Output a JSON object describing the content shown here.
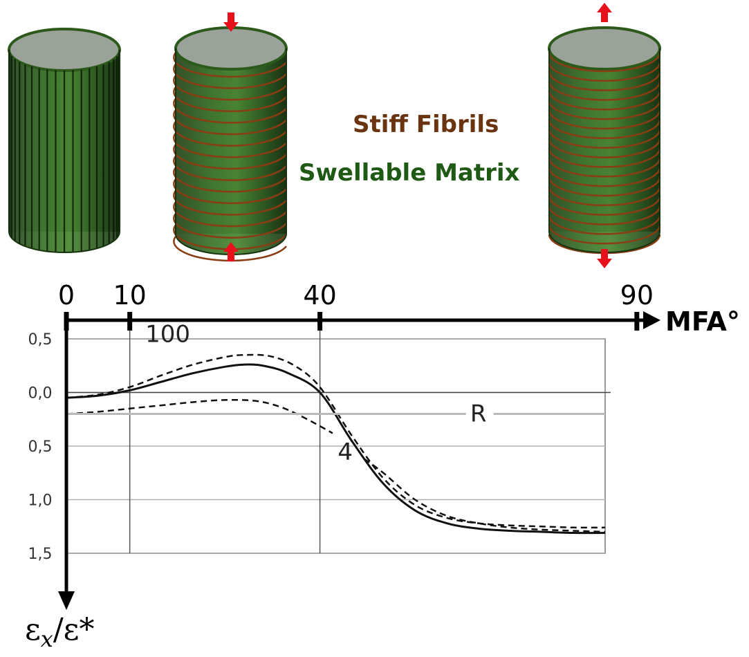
{
  "legend": {
    "fibrils_label": "Stiff Fibrils",
    "matrix_label": "Swellable Matrix",
    "fibrils_color": "#6b3410",
    "matrix_color": "#1f5a14"
  },
  "arrow_color": "#e8101a",
  "cylinders": [
    {
      "name": "cylinder-axial-fibrils",
      "mfa": 0,
      "fibril_orientation": "axial",
      "arrows": "none"
    },
    {
      "name": "cylinder-helical-fibrils",
      "mfa": 40,
      "fibril_orientation": "helical",
      "arrows": "inward"
    },
    {
      "name": "cylinder-hoop-fibrils",
      "mfa": 90,
      "fibril_orientation": "hoop",
      "arrows": "outward"
    }
  ],
  "chart_data": {
    "type": "line",
    "xlabel": "MFA°",
    "ylabel_main": "ε",
    "ylabel_sub": "x",
    "ylabel_rest": "/ε*",
    "x_axis_ticks": [
      "0",
      "10",
      "40",
      "90"
    ],
    "x_tick_values": [
      0,
      10,
      40,
      90
    ],
    "y_tick_labels": [
      "0,5",
      "0,0",
      "0,5",
      "1,0",
      "1,5"
    ],
    "y_tick_values": [
      0.5,
      0.0,
      -0.5,
      -1.0,
      -1.5
    ],
    "xlim": [
      0,
      85
    ],
    "ylim": [
      -1.5,
      0.5
    ],
    "grid": true,
    "series": [
      {
        "name": "100",
        "style": "dashed",
        "x": [
          0,
          5,
          10,
          15,
          20,
          25,
          28,
          32,
          36,
          40,
          45,
          50,
          55,
          60,
          65,
          70,
          75,
          80,
          85
        ],
        "y": [
          -0.05,
          -0.02,
          0.05,
          0.16,
          0.26,
          0.33,
          0.35,
          0.34,
          0.25,
          0.05,
          -0.4,
          -0.8,
          -1.05,
          -1.17,
          -1.22,
          -1.24,
          -1.25,
          -1.26,
          -1.26
        ]
      },
      {
        "name": "",
        "style": "solid",
        "x": [
          0,
          5,
          10,
          15,
          20,
          25,
          28,
          31,
          35,
          40,
          45,
          50,
          55,
          60,
          65,
          70,
          75,
          80,
          85
        ],
        "y": [
          -0.05,
          -0.03,
          0.02,
          0.1,
          0.18,
          0.24,
          0.26,
          0.25,
          0.18,
          0.0,
          -0.45,
          -0.85,
          -1.1,
          -1.22,
          -1.27,
          -1.29,
          -1.3,
          -1.31,
          -1.31
        ]
      },
      {
        "name": "4",
        "style": "dashed",
        "x": [
          0,
          5,
          10,
          15,
          20,
          25,
          30,
          34,
          38,
          42
        ],
        "y": [
          -0.2,
          -0.18,
          -0.15,
          -0.12,
          -0.09,
          -0.07,
          -0.08,
          -0.14,
          -0.25,
          -0.38
        ]
      },
      {
        "name": "4",
        "style": "dashed",
        "x": [
          47,
          50,
          55,
          60,
          65,
          70,
          75,
          80,
          85
        ],
        "y": [
          -0.62,
          -0.75,
          -1.0,
          -1.15,
          -1.22,
          -1.26,
          -1.28,
          -1.29,
          -1.3
        ]
      },
      {
        "name": "R",
        "style": "gray-reference",
        "x": [
          0,
          85
        ],
        "y": [
          -0.2,
          -0.2
        ]
      }
    ],
    "annotations": [
      {
        "text": "100",
        "x": 16,
        "y": 0.47
      },
      {
        "text": "R",
        "x": 65,
        "y": -0.27
      },
      {
        "text": "4",
        "x": 44,
        "y": -0.63
      }
    ],
    "vertical_grid_x": [
      10,
      40
    ]
  }
}
